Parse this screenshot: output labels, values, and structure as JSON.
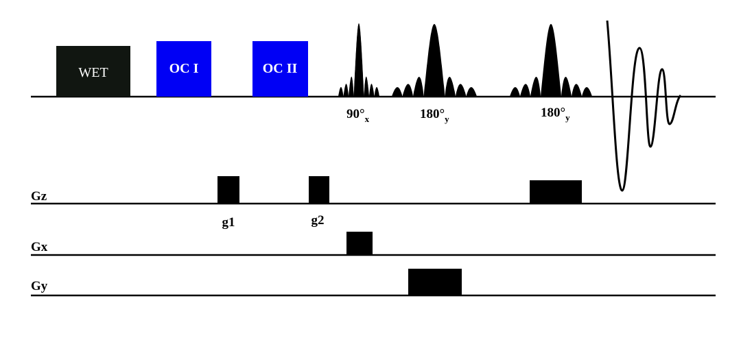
{
  "blocks": [
    {
      "label": "WET"
    },
    {
      "label": "OC I"
    },
    {
      "label": "OC II"
    }
  ],
  "pulses": [
    {
      "label": "90°",
      "subscript": "x"
    },
    {
      "label": "180°",
      "subscript": "y"
    },
    {
      "label": "180°",
      "subscript": "y"
    }
  ],
  "channels": [
    {
      "label": "Gz"
    },
    {
      "label": "Gx"
    },
    {
      "label": "Gy"
    }
  ],
  "gradients": [
    {
      "label": "g1"
    },
    {
      "label": "g2"
    }
  ]
}
